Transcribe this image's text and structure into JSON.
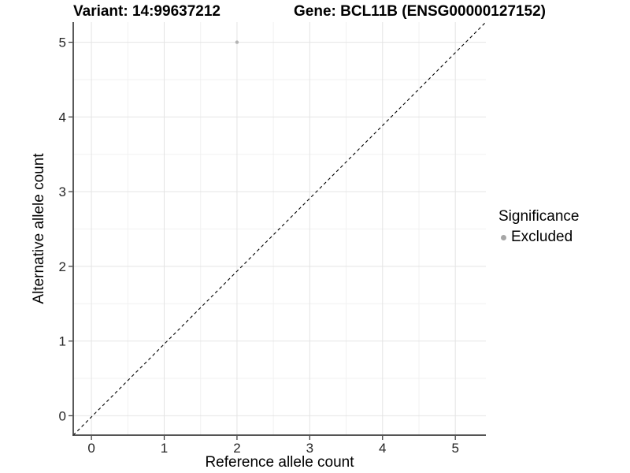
{
  "title": {
    "variant": "Variant: 14:99637212",
    "gene": "Gene: BCL11B (ENSG00000127152)"
  },
  "chart_data": {
    "type": "scatter",
    "xlabel": "Reference allele count",
    "ylabel": "Alternative allele count",
    "xlim": [
      -0.25,
      5.42
    ],
    "ylim": [
      -0.26,
      5.27
    ],
    "x_ticks": [
      0,
      1,
      2,
      3,
      4,
      5
    ],
    "y_ticks": [
      0,
      1,
      2,
      3,
      4,
      5
    ],
    "x_minor_ticks": [
      0.5,
      1.5,
      2.5,
      3.5,
      4.5
    ],
    "y_minor_ticks": [
      0.5,
      1.5,
      2.5,
      3.5,
      4.5
    ],
    "grid": true,
    "reference_line": {
      "type": "identity",
      "slope": 1,
      "intercept": 0,
      "style": "dashed",
      "color": "#000000"
    },
    "series": [
      {
        "name": "Excluded",
        "points": [
          {
            "x": 2,
            "y": 5
          }
        ],
        "color": "#b4b4b4",
        "radius_px": 2.2
      }
    ],
    "legend": {
      "title": "Significance",
      "position": "right",
      "items": [
        {
          "label": "Excluded",
          "color": "#a6a6a6"
        }
      ]
    },
    "colors": {
      "background": "#ffffff",
      "grid_major": "#e4e4e4",
      "grid_minor": "#f1f1f1",
      "axis_line": "#3c3c3c",
      "tick_mark": "#333333",
      "tick_label": "#262626",
      "axis_title": "#000000"
    }
  }
}
